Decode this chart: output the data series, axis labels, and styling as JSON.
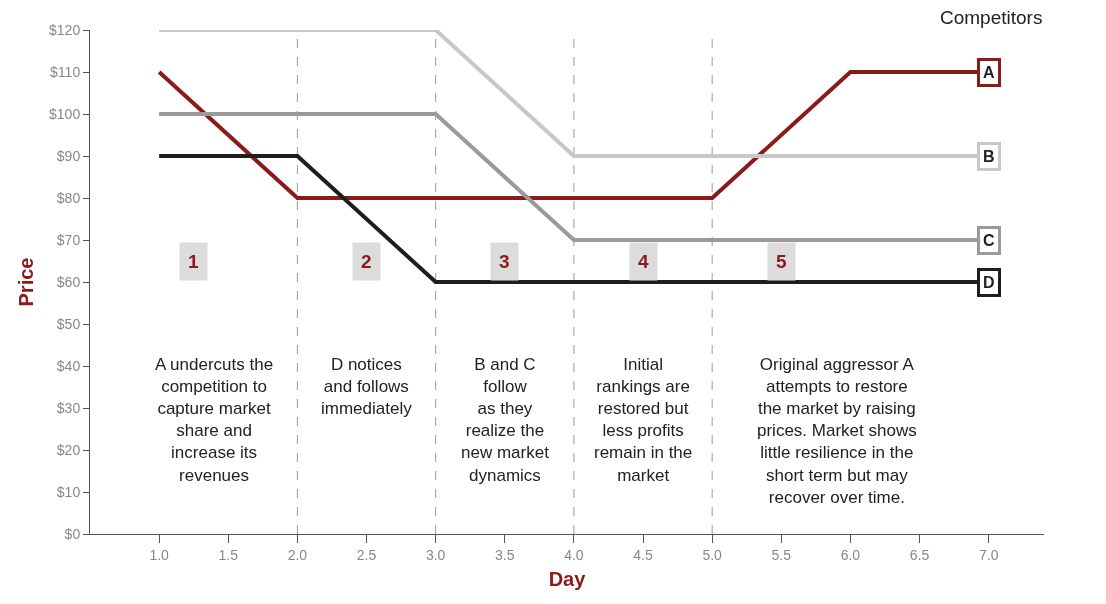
{
  "chart_data": {
    "type": "line",
    "xlabel": "Day",
    "ylabel": "Price",
    "legend_title": "Competitors",
    "x": [
      1,
      2,
      3,
      4,
      5,
      6,
      7
    ],
    "series": [
      {
        "name": "A",
        "color": "#8b1a1a",
        "values": [
          110,
          80,
          80,
          80,
          80,
          110,
          110
        ]
      },
      {
        "name": "B",
        "color": "#c8c8c8",
        "values": [
          120,
          120,
          120,
          90,
          90,
          90,
          90
        ]
      },
      {
        "name": "C",
        "color": "#9a9a9a",
        "values": [
          100,
          100,
          100,
          70,
          70,
          70,
          70
        ]
      },
      {
        "name": "D",
        "color": "#1e1e1e",
        "values": [
          90,
          90,
          60,
          60,
          60,
          60,
          60
        ]
      }
    ],
    "xlim": [
      0.5,
      7.4
    ],
    "xticks": [
      {
        "value": 1,
        "label": "1.0"
      },
      {
        "value": 1.5,
        "label": "1.5"
      },
      {
        "value": 2,
        "label": "2.0"
      },
      {
        "value": 2.5,
        "label": "2.5"
      },
      {
        "value": 3,
        "label": "3.0"
      },
      {
        "value": 3.5,
        "label": "3.5"
      },
      {
        "value": 4,
        "label": "4.0"
      },
      {
        "value": 4.5,
        "label": "4.5"
      },
      {
        "value": 5,
        "label": "5.0"
      },
      {
        "value": 5.5,
        "label": "5.5"
      },
      {
        "value": 6,
        "label": "6.0"
      },
      {
        "value": 6.5,
        "label": "6.5"
      },
      {
        "value": 7,
        "label": "7.0"
      }
    ],
    "ylim": [
      0,
      120
    ],
    "yticks": [
      {
        "value": 0,
        "label": "$0"
      },
      {
        "value": 10,
        "label": "$10"
      },
      {
        "value": 20,
        "label": "$20"
      },
      {
        "value": 30,
        "label": "$30"
      },
      {
        "value": 40,
        "label": "$40"
      },
      {
        "value": 50,
        "label": "$50"
      },
      {
        "value": 60,
        "label": "$60"
      },
      {
        "value": 70,
        "label": "$70"
      },
      {
        "value": 80,
        "label": "$80"
      },
      {
        "value": 90,
        "label": "$90"
      },
      {
        "value": 100,
        "label": "$100"
      },
      {
        "value": 110,
        "label": "$110"
      },
      {
        "value": 120,
        "label": "$120"
      }
    ],
    "ref_lines": [
      {
        "axis": "x",
        "value": 2,
        "color": "#999999",
        "line_style": "dashed"
      },
      {
        "axis": "x",
        "value": 3,
        "color": "#999999",
        "line_style": "dashed"
      },
      {
        "axis": "x",
        "value": 4,
        "color": "#999999",
        "line_style": "dashed"
      },
      {
        "axis": "x",
        "value": 5,
        "color": "#999999",
        "line_style": "dashed"
      }
    ],
    "annotations": [
      "1",
      "2",
      "3",
      "4",
      "5",
      "A undercuts the\ncompetition to\ncapture market\nshare and\nincrease its\nrevenues",
      "D notices\nand follows\nimmediately",
      "B and C\nfollow\nas they\nrealize the\nnew market\ndynamics",
      "Initial\nrankings are\nrestored but\nless profits\nremain in the\nmarket",
      "Original aggressor A\nattempts to restore\nthe market by raising\nprices. Market shows\nlittle resilience in the\nshort term but may\nrecover over time."
    ],
    "grid": false,
    "legend": false,
    "marker": "none",
    "line_style": "solid"
  }
}
